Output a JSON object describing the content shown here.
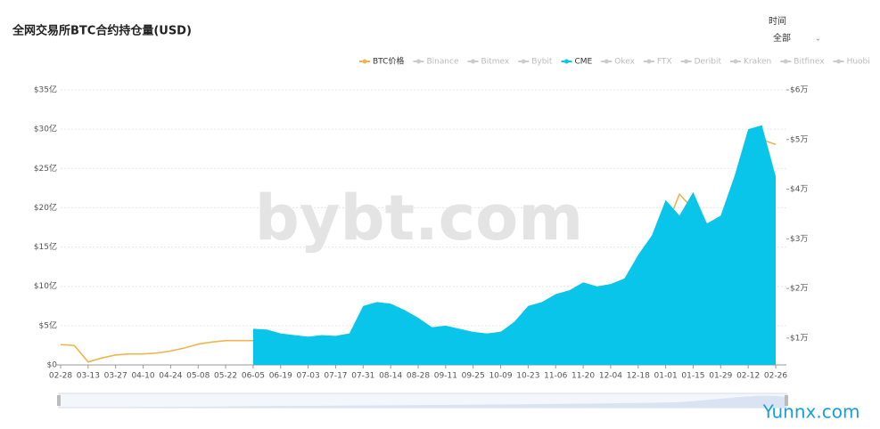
{
  "chart_data": {
    "type": "area-line",
    "title": "全网交易所BTC合约持仓量(USD)",
    "time_filter": {
      "label": "时间",
      "value": "全部"
    },
    "watermark": "bybt.com",
    "overlay_text": "Yunnx.com",
    "categories": [
      "02-28",
      null,
      "03-13",
      null,
      "03-27",
      null,
      "04-10",
      null,
      "04-24",
      null,
      "05-08",
      null,
      "05-22",
      null,
      "06-05",
      null,
      "06-19",
      null,
      "07-03",
      null,
      "07-17",
      null,
      "07-31",
      null,
      "08-14",
      null,
      "08-28",
      null,
      "09-11",
      null,
      "09-25",
      null,
      "10-09",
      null,
      "10-23",
      null,
      "11-06",
      null,
      "11-20",
      null,
      "12-04",
      null,
      "12-18",
      null,
      "01-01",
      null,
      "01-15",
      null,
      "01-29",
      null,
      "02-12",
      null,
      "02-26"
    ],
    "ylim": [
      0,
      35
    ],
    "yticks": [
      {
        "value": 0,
        "label": "$0"
      },
      {
        "value": 5,
        "label": "$5亿"
      },
      {
        "value": 10,
        "label": "$10亿"
      },
      {
        "value": 15,
        "label": "$15亿"
      },
      {
        "value": 20,
        "label": "$20亿"
      },
      {
        "value": 25,
        "label": "$25亿"
      },
      {
        "value": 30,
        "label": "$30亿"
      },
      {
        "value": 35,
        "label": "$35亿"
      }
    ],
    "y2lim": [
      0.46,
      6
    ],
    "y2ticks": [
      {
        "value": 1,
        "label": "$1万"
      },
      {
        "value": 2,
        "label": "$2万"
      },
      {
        "value": 3,
        "label": "$3万"
      },
      {
        "value": 4,
        "label": "$4万"
      },
      {
        "value": 5,
        "label": "$5万"
      },
      {
        "value": 6,
        "label": "$6万"
      }
    ],
    "grid": true,
    "series": [
      {
        "name": "BTC价格",
        "color": "#f0b44c",
        "axis": "y2",
        "kind": "line",
        "visible": true,
        "values": [
          0.87,
          0.85,
          0.52,
          0.6,
          0.66,
          0.68,
          0.68,
          0.7,
          0.74,
          0.8,
          0.88,
          0.92,
          0.95,
          0.95,
          0.95,
          0.93,
          0.92,
          0.92,
          0.92,
          0.92,
          0.92,
          0.95,
          1.1,
          1.17,
          1.18,
          1.16,
          1.15,
          1.03,
          1.04,
          1.07,
          1.07,
          1.07,
          1.12,
          1.15,
          1.3,
          1.35,
          1.5,
          1.6,
          1.8,
          1.9,
          1.9,
          1.9,
          2.3,
          2.4,
          3.2,
          3.9,
          3.6,
          3.3,
          3.3,
          3.6,
          4.4,
          5.0,
          4.9
        ]
      },
      {
        "name": "Binance",
        "color": "#cccccc",
        "visible": false
      },
      {
        "name": "Bitmex",
        "color": "#cccccc",
        "visible": false
      },
      {
        "name": "Bybit",
        "color": "#cccccc",
        "visible": false
      },
      {
        "name": "CME",
        "color": "#0ac5ea",
        "axis": "y",
        "kind": "area",
        "visible": true,
        "values": [
          null,
          null,
          null,
          null,
          null,
          null,
          null,
          null,
          null,
          null,
          null,
          null,
          null,
          null,
          4.6,
          4.5,
          4.0,
          3.8,
          3.6,
          3.8,
          3.7,
          4.0,
          7.5,
          8.0,
          7.8,
          7.0,
          6.0,
          4.8,
          5.0,
          4.6,
          4.2,
          4.0,
          4.2,
          5.5,
          7.5,
          8.0,
          9.0,
          9.5,
          10.5,
          10.0,
          10.3,
          11.0,
          14.0,
          16.5,
          21,
          19,
          22,
          18,
          19,
          24,
          30,
          30.5,
          24
        ]
      },
      {
        "name": "Okex",
        "color": "#cccccc",
        "visible": false
      },
      {
        "name": "FTX",
        "color": "#cccccc",
        "visible": false
      },
      {
        "name": "Deribit",
        "color": "#cccccc",
        "visible": false
      },
      {
        "name": "Kraken",
        "color": "#cccccc",
        "visible": false
      },
      {
        "name": "Bitfinex",
        "color": "#cccccc",
        "visible": false
      },
      {
        "name": "Huobi",
        "color": "#cccccc",
        "visible": false
      }
    ]
  }
}
